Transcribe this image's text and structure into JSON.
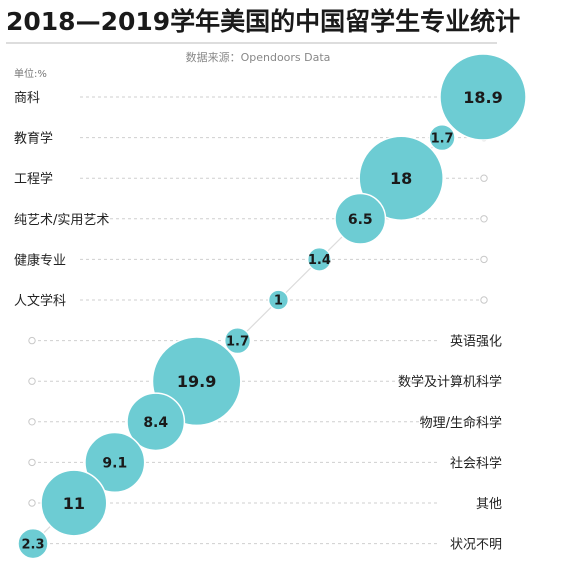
{
  "chart_data": {
    "type": "bubble",
    "title": "2018—2019学年美国的中国留学生专业统计",
    "source": "数据来源：Opendoors Data",
    "unit": "单位:%",
    "categories": [
      "商科",
      "教育学",
      "工程学",
      "纯艺术/实用艺术",
      "健康专业",
      "人文学科",
      "英语强化",
      "数学及计算机科学",
      "物理/生命科学",
      "社会科学",
      "其他",
      "状况不明"
    ],
    "values": [
      18.9,
      1.7,
      18,
      6.5,
      1.4,
      1,
      1.7,
      19.9,
      8.4,
      9.1,
      11,
      2.3
    ],
    "value_labels": [
      "18.9",
      "1.7",
      "18",
      "6.5",
      "1.4",
      "1",
      "1.7",
      "19.9",
      "8.4",
      "9.1",
      "11",
      "2.3"
    ],
    "label_side": [
      "left",
      "left",
      "left",
      "left",
      "left",
      "left",
      "right",
      "right",
      "right",
      "right",
      "right",
      "right"
    ],
    "colors": {
      "bubble": "#6dccd3",
      "bubble_stroke": "#ffffff",
      "gridline": "#cfcfcf",
      "title": "#1a1a1a"
    },
    "grid": true
  }
}
